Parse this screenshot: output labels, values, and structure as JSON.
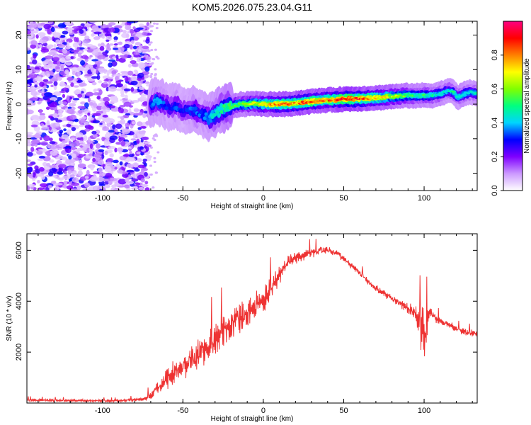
{
  "figure": {
    "title": "KOM5.2026.075.23.04.G11"
  },
  "chart_data": [
    {
      "type": "heatmap",
      "xlabel": "Height of straight line (km)",
      "ylabel": "Frequency (Hz)",
      "xlim": [
        -147,
        133
      ],
      "ylim": [
        -25,
        24
      ],
      "xticks": [
        -100,
        -50,
        0,
        50,
        100
      ],
      "yticks": [
        -20,
        -10,
        0,
        10,
        20
      ],
      "noise_region": {
        "x_from": -147,
        "x_to": -71,
        "y_from": -25,
        "y_to": 24
      },
      "ridge": {
        "x": [
          -70,
          -66,
          -62,
          -58,
          -54,
          -50,
          -46,
          -42,
          -38,
          -34,
          -30,
          -26,
          -22,
          -18,
          -14,
          -10,
          -6,
          -2,
          0,
          5,
          10,
          15,
          20,
          25,
          30,
          35,
          40,
          45,
          50,
          55,
          60,
          65,
          70,
          75,
          80,
          85,
          90,
          95,
          100,
          105,
          110,
          115,
          118,
          121,
          125,
          129,
          133
        ],
        "y": [
          0,
          1,
          0,
          -1,
          -0.5,
          -2,
          -1.5,
          -2,
          -3,
          -4,
          -3,
          -1.5,
          -1,
          -0.5,
          0,
          0,
          0.3,
          0,
          0,
          0,
          0,
          0,
          0.3,
          0.5,
          0.8,
          1,
          1.2,
          1.3,
          1.5,
          1.5,
          1.6,
          1.7,
          1.8,
          2,
          2.2,
          2.3,
          2.5,
          2.4,
          2.6,
          2.5,
          3,
          4,
          3.5,
          2,
          3,
          3.5,
          3
        ],
        "amplitude": [
          0.35,
          0.4,
          0.35,
          0.3,
          0.35,
          0.3,
          0.35,
          0.4,
          0.35,
          0.4,
          0.45,
          0.5,
          0.55,
          0.6,
          0.6,
          0.65,
          0.7,
          0.7,
          0.75,
          0.8,
          0.85,
          0.85,
          0.85,
          0.9,
          0.9,
          0.85,
          0.85,
          0.9,
          0.95,
          0.95,
          0.9,
          0.85,
          0.8,
          0.75,
          0.7,
          0.65,
          0.6,
          0.55,
          0.55,
          0.5,
          0.5,
          0.45,
          0.5,
          0.45,
          0.5,
          0.45,
          0.45
        ]
      },
      "colorbar": {
        "label": "Normalized spectral amplitude",
        "range": [
          0,
          1
        ],
        "ticks": [
          "0.0",
          "0.2",
          "0.4",
          "0.6",
          "0.8"
        ],
        "colormap": [
          "#ffffff",
          "#cc99ff",
          "#7f00ff",
          "#0000ff",
          "#00d4ff",
          "#00ff80",
          "#80ff00",
          "#ffff00",
          "#ff8000",
          "#ff0000",
          "#ff0080"
        ]
      }
    },
    {
      "type": "line",
      "xlabel": "Height of straight line (km)",
      "ylabel": "SNR (10 * v/v)",
      "xlim": [
        -147,
        133
      ],
      "ylim": [
        0,
        6650
      ],
      "xticks": [
        -100,
        -50,
        0,
        50,
        100
      ],
      "yticks": [
        2000,
        4000,
        6000
      ],
      "series": [
        {
          "color": "#ee3333",
          "x": [
            -147,
            -120,
            -90,
            -75,
            -70,
            -65,
            -60,
            -55,
            -50,
            -45,
            -40,
            -35,
            -30,
            -25,
            -20,
            -15,
            -10,
            -5,
            0,
            5,
            10,
            15,
            20,
            25,
            30,
            35,
            40,
            45,
            50,
            55,
            60,
            65,
            70,
            75,
            80,
            85,
            90,
            95,
            98,
            100,
            103,
            106,
            110,
            115,
            120,
            125,
            133
          ],
          "y": [
            120,
            100,
            90,
            150,
            300,
            600,
            900,
            1200,
            1500,
            1700,
            1900,
            2200,
            2500,
            2800,
            3100,
            3300,
            3500,
            3800,
            4000,
            4500,
            5000,
            5500,
            5700,
            5800,
            5900,
            6000,
            6000,
            5900,
            5700,
            5400,
            5100,
            4800,
            4500,
            4300,
            4100,
            3900,
            3700,
            3500,
            3000,
            2500,
            3600,
            3400,
            3200,
            3100,
            2900,
            2800,
            2700
          ],
          "spread": [
            80,
            70,
            70,
            100,
            250,
            500,
            700,
            800,
            900,
            900,
            900,
            1000,
            1000,
            1000,
            900,
            900,
            900,
            800,
            800,
            700,
            600,
            500,
            400,
            350,
            300,
            250,
            200,
            200,
            200,
            200,
            200,
            200,
            200,
            200,
            200,
            250,
            300,
            500,
            1200,
            1800,
            400,
            300,
            250,
            200,
            200,
            200,
            200
          ]
        }
      ]
    }
  ]
}
